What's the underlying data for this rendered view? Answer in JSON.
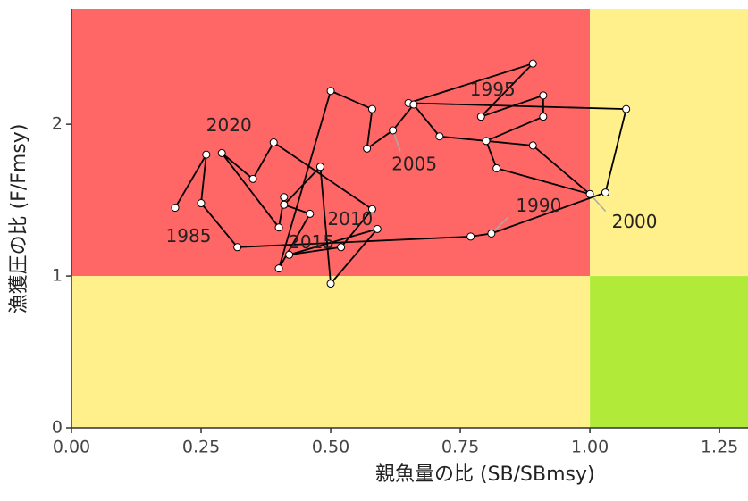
{
  "chart_data": {
    "type": "kobe",
    "x_label": "親魚量の比 (SB/SBmsy)",
    "y_label": "漁獲圧の比 (F/Fmsy)",
    "xlim": [
      0,
      1.305
    ],
    "ylim": [
      0,
      2.76
    ],
    "xticks": [
      {
        "value": 0,
        "label": "0.00"
      },
      {
        "value": 0.25,
        "label": "0.25"
      },
      {
        "value": 0.5,
        "label": "0.50"
      },
      {
        "value": 0.75,
        "label": "0.75"
      },
      {
        "value": 1,
        "label": "1.00"
      },
      {
        "value": 1.25,
        "label": "1.25"
      }
    ],
    "yticks": [
      0,
      1,
      2
    ],
    "zones": {
      "x_ref": 1,
      "y_ref": 1,
      "low_b_high_f": "#ff6666",
      "low_b_low_f": "#fff08c",
      "high_b_high_f": "#fff08c",
      "high_b_low_f": "#b2ea3a"
    },
    "series": [
      {
        "color": "#000000",
        "x": [
          0.2,
          0.26,
          0.25,
          0.32,
          0.77,
          0.81,
          1.03,
          1.07,
          0.65,
          0.89,
          0.79,
          0.91,
          0.91,
          0.8,
          0.82,
          1.0,
          0.89,
          0.71,
          0.66,
          0.62,
          0.57,
          0.58,
          0.5,
          0.4,
          0.46,
          0.41,
          0.48,
          0.5,
          0.59,
          0.42,
          0.52,
          0.58,
          0.39,
          0.35,
          0.29,
          0.4,
          0.41
        ],
        "y": [
          1.45,
          1.8,
          1.48,
          1.19,
          1.26,
          1.28,
          1.55,
          2.1,
          2.14,
          2.4,
          2.05,
          2.19,
          2.05,
          1.89,
          1.71,
          1.54,
          1.86,
          1.92,
          2.13,
          1.96,
          1.84,
          2.1,
          2.22,
          1.05,
          1.41,
          1.47,
          1.72,
          0.95,
          1.31,
          1.14,
          1.19,
          1.44,
          1.88,
          1.64,
          1.81,
          1.32,
          1.52
        ],
        "point_labels": [
          "1985",
          null,
          null,
          null,
          null,
          "1990",
          null,
          null,
          null,
          null,
          "1995",
          null,
          null,
          null,
          null,
          "2000",
          null,
          null,
          null,
          "2005",
          null,
          null,
          null,
          null,
          "2010",
          null,
          null,
          null,
          null,
          "2015",
          null,
          null,
          null,
          null,
          "2020",
          null,
          null
        ]
      }
    ]
  }
}
